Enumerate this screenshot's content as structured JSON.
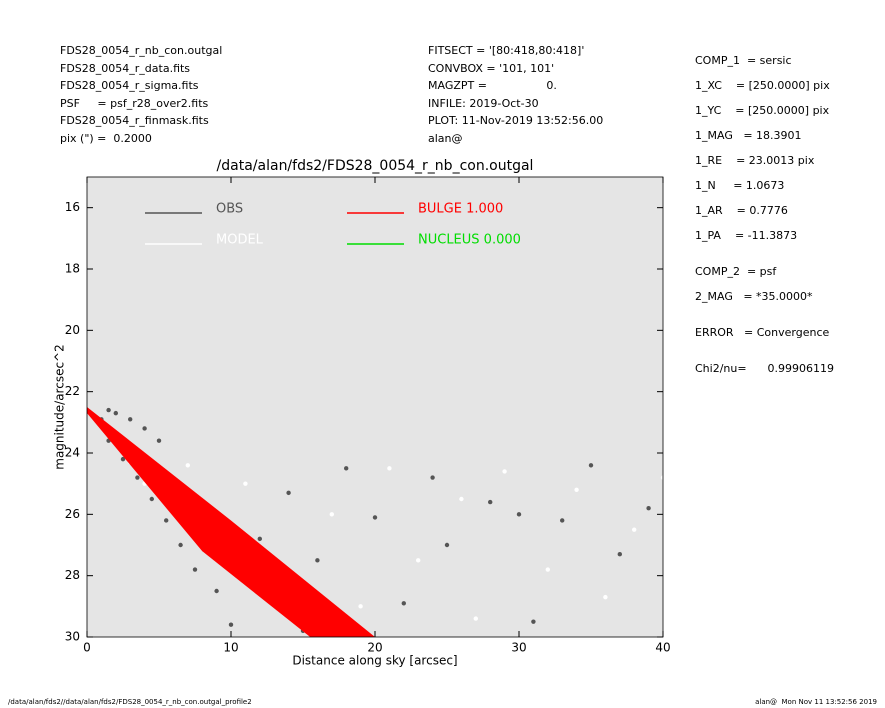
{
  "header": {
    "left": [
      "FDS28_0054_r_nb_con.outgal",
      "FDS28_0054_r_data.fits",
      "FDS28_0054_r_sigma.fits",
      "PSF     = psf_r28_over2.fits",
      "FDS28_0054_r_finmask.fits",
      "pix (\") =  0.2000"
    ],
    "middle": [
      "FITSECT = '[80:418,80:418]'",
      "CONVBOX = '101, 101'",
      "MAGZPT =                 0.",
      "INFILE: 2019-Oct-30",
      "PLOT: 11-Nov-2019 13:52:56.00",
      "alan@"
    ]
  },
  "params": [
    [
      "COMP_1  = sersic",
      "1_XC    = [250.0000] pix",
      "1_YC    = [250.0000] pix",
      "1_MAG   = 18.3901",
      "1_RE    = 23.0013 pix",
      "1_N     = 1.0673",
      "1_AR    = 0.7776",
      "1_PA    = -11.3873"
    ],
    [
      "COMP_2  = psf",
      "2_MAG   = *35.0000*"
    ],
    [
      "ERROR   = Convergence"
    ],
    [
      "Chi2/nu=      0.99906119"
    ]
  ],
  "footer": {
    "left": "/data/alan/fds2//data/alan/fds2/FDS28_0054_r_nb_con.outgal_profile2",
    "right": "alan@  Mon Nov 11 13:52:56 2019"
  },
  "chart_data": {
    "type": "scatter",
    "title": "/data/alan/fds2/FDS28_0054_r_nb_con.outgal",
    "x_label": "Distance along sky [arcsec]",
    "y_label": "magnitude/arcsec^2",
    "xlim": [
      0,
      40
    ],
    "ylim": [
      30,
      15
    ],
    "xticks": [
      0,
      10,
      20,
      30,
      40
    ],
    "yticks": [
      16,
      18,
      20,
      22,
      24,
      26,
      28,
      30
    ],
    "background": "#e5e5e5",
    "series": [
      {
        "name": "OBS",
        "color": "#555555",
        "x": [
          1,
          1.5,
          2,
          3,
          4,
          5,
          1.5,
          2.5,
          3.5,
          4.5,
          5.5,
          6.5,
          7.5,
          9,
          8,
          12,
          14,
          16,
          18,
          20,
          22,
          24,
          25,
          28,
          30,
          31,
          33,
          35,
          37,
          39,
          10,
          15
        ],
        "values": [
          22.9,
          22.6,
          22.7,
          22.9,
          23.2,
          23.6,
          23.6,
          24.2,
          24.8,
          25.5,
          26.2,
          27,
          27.8,
          28.5,
          26,
          26.8,
          25.3,
          27.5,
          24.5,
          26.1,
          28.9,
          24.8,
          27,
          25.6,
          26,
          29.5,
          26.2,
          24.4,
          27.3,
          25.8,
          29.6,
          29.8
        ]
      },
      {
        "name": "MODEL",
        "color": "#ffffff",
        "x": [
          2,
          3,
          4,
          6,
          7,
          9,
          11,
          13,
          17,
          19,
          21,
          23,
          26,
          27,
          29,
          32,
          34,
          36,
          38,
          40
        ],
        "values": [
          23.5,
          24.3,
          25,
          25.5,
          24.4,
          27,
          25,
          28.5,
          26,
          29,
          24.5,
          27.5,
          25.5,
          29.4,
          24.6,
          27.8,
          25.2,
          28.7,
          26.5,
          24.8
        ]
      },
      {
        "name": "BULGE  1.000",
        "color": "#ff0000",
        "x": [
          0,
          10,
          20
        ],
        "values": [
          22.5,
          26.2,
          30
        ],
        "x2": [
          0,
          8,
          15.5
        ],
        "values2": [
          22.7,
          27.2,
          30
        ]
      },
      {
        "name": "NUCLEUS  0.000",
        "color": "#00dd00",
        "x": [],
        "values": []
      }
    ]
  }
}
